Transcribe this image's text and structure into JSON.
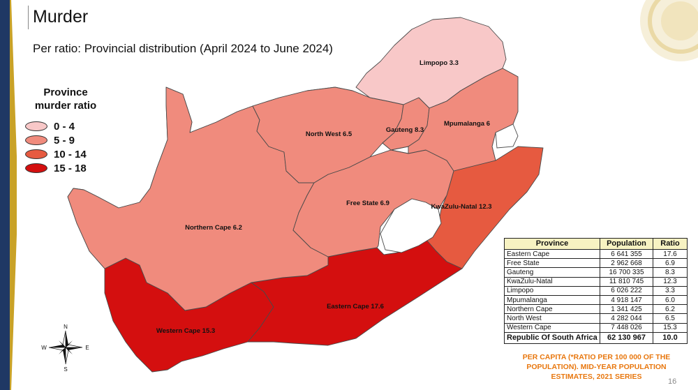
{
  "title": "Murder",
  "subtitle": "Per ratio: Provincial distribution (April 2024 to June 2024)",
  "colors": {
    "band_0_4": "#f8c8c8",
    "band_5_9": "#f08b7d",
    "band_10_14": "#e65a40",
    "band_15_18": "#d40f0f",
    "accent_orange": "#e8770e",
    "table_header_bg": "#f7f2c2",
    "left_bar": "#1f3864"
  },
  "legend": {
    "title": "Province murder ratio",
    "items": [
      {
        "label": "0 - 4",
        "color": "#f8c8c8"
      },
      {
        "label": "5 - 9",
        "color": "#f08b7d"
      },
      {
        "label": "10 - 14",
        "color": "#e65a40"
      },
      {
        "label": "15 - 18",
        "color": "#d40f0f"
      }
    ]
  },
  "map_labels": {
    "limpopo": "Limpopo 3.3",
    "north_west": "North West 6.5",
    "gauteng": "Gauteng 8.3",
    "mpumalanga": "Mpumalanga 6",
    "free_state": "Free State 6.9",
    "kwazulu_natal": "KwaZulu-Natal 12.3",
    "northern_cape": "Northern Cape 6.2",
    "eastern_cape": "Eastern Cape 17.6",
    "western_cape": "Western Cape 15.3"
  },
  "compass": {
    "n": "N",
    "s": "S",
    "e": "E",
    "w": "W"
  },
  "table": {
    "headers": [
      "Province",
      "Population",
      "Ratio"
    ],
    "rows": [
      [
        "Eastern Cape",
        "6 641 355",
        "17.6"
      ],
      [
        "Free State",
        "2 962 668",
        "6.9"
      ],
      [
        "Gauteng",
        "16 700 335",
        "8.3"
      ],
      [
        "KwaZulu-Natal",
        "11 810 745",
        "12.3"
      ],
      [
        "Limpopo",
        "6 026 222",
        "3.3"
      ],
      [
        "Mpumalanga",
        "4 918 147",
        "6.0"
      ],
      [
        "Northern Cape",
        "1 341 425",
        "6.2"
      ],
      [
        "North West",
        "4 282 044",
        "6.5"
      ],
      [
        "Western Cape",
        "7 448 026",
        "15.3"
      ]
    ],
    "total": [
      "Republic Of South Africa",
      "62 130 967",
      "10.0"
    ]
  },
  "footnote": "PER CAPITA (*RATIO PER 100 000 OF THE POPULATION). MID-YEAR POPULATION ESTIMATES, 2021 SERIES",
  "slide_number": "16"
}
